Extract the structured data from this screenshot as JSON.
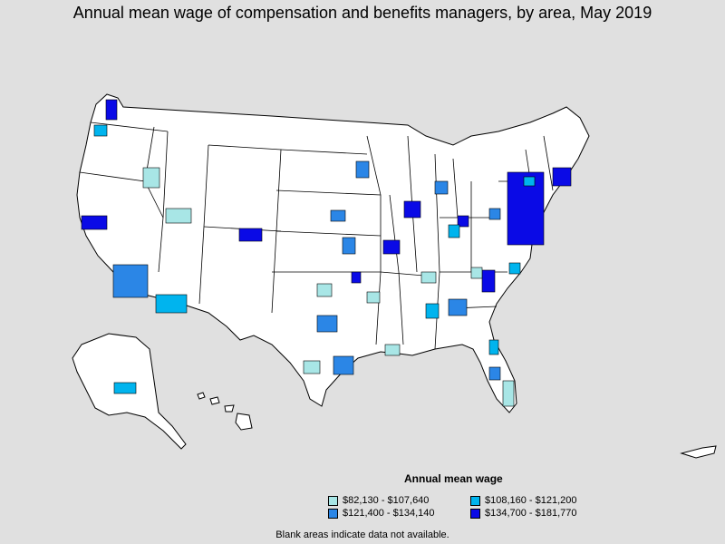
{
  "title": "Annual mean wage of compensation and benefits managers, by area, May 2019",
  "legend": {
    "title": "Annual mean wage",
    "items": [
      {
        "label": "$82,130 - $107,640",
        "color": "#a8e6e6"
      },
      {
        "label": "$108,160 - $121,200",
        "color": "#00b4ee"
      },
      {
        "label": "$121,400 - $134,140",
        "color": "#2b86e6"
      },
      {
        "label": "$134,700 - $181,770",
        "color": "#0a0ae6"
      }
    ]
  },
  "footnote": "Blank areas indicate data not available.",
  "colors": {
    "background": "#e0e0e0",
    "land": "#ffffff",
    "border": "#000000"
  }
}
